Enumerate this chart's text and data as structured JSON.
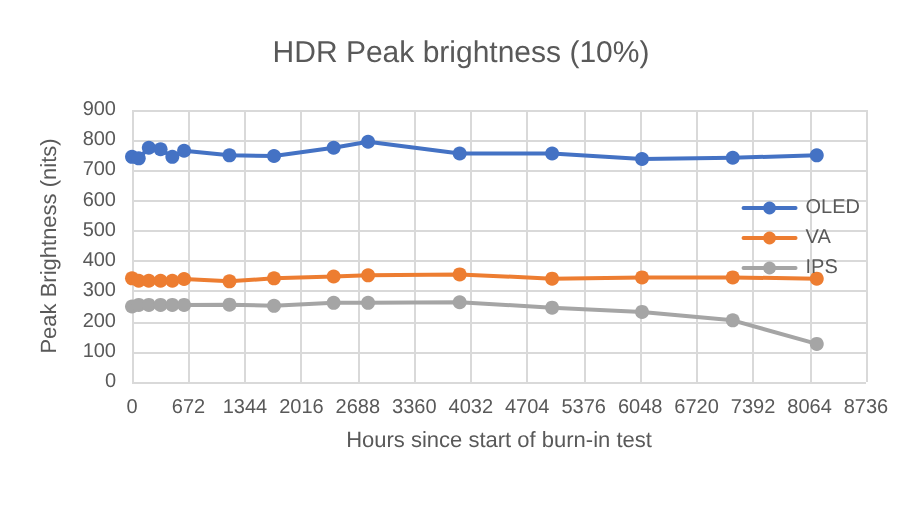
{
  "chart_data": {
    "type": "line",
    "title": "HDR Peak brightness (10%)",
    "xlabel": "Hours since start of burn-in test",
    "ylabel": "Peak Brightness (nits)",
    "x": [
      0,
      80,
      200,
      340,
      480,
      620,
      1160,
      1690,
      2400,
      2810,
      3900,
      5000,
      6070,
      7150,
      8150
    ],
    "series": [
      {
        "name": "OLED",
        "color": "#4472c4",
        "values": [
          745,
          740,
          775,
          770,
          745,
          765,
          750,
          748,
          775,
          795,
          756,
          756,
          738,
          742,
          750
        ]
      },
      {
        "name": "VA",
        "color": "#ed7d31",
        "values": [
          343,
          335,
          335,
          335,
          335,
          341,
          333,
          343,
          349,
          353,
          356,
          342,
          346,
          346,
          342
        ]
      },
      {
        "name": "IPS",
        "color": "#a5a5a5",
        "values": [
          250,
          255,
          255,
          255,
          255,
          255,
          256,
          252,
          262,
          262,
          264,
          246,
          232,
          204,
          126
        ]
      }
    ],
    "xlim": [
      0,
      8736
    ],
    "xticks": [
      0,
      672,
      1344,
      2016,
      2688,
      3360,
      4032,
      4704,
      5376,
      6048,
      6720,
      7392,
      8064,
      8736
    ],
    "ylim": [
      0,
      900
    ],
    "yticks": [
      0,
      100,
      200,
      300,
      400,
      500,
      600,
      700,
      800,
      900
    ],
    "grid": true,
    "legend": "top right",
    "marker": "circle",
    "line_style": "solid"
  }
}
